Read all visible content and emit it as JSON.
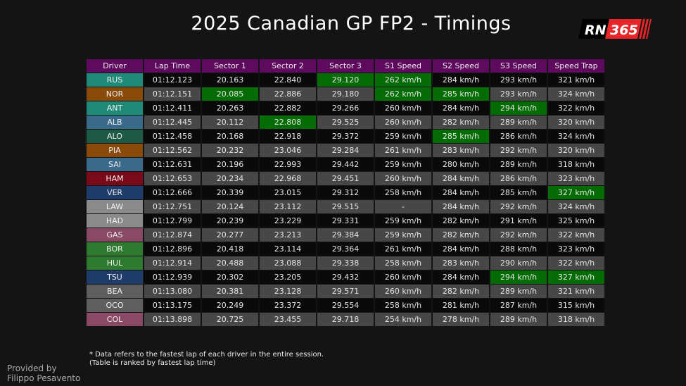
{
  "title": "2025 Canadian GP FP2 - Timings",
  "logo": {
    "text_left": "RN",
    "text_right": "365",
    "colors": {
      "left": "#000000",
      "right": "#e8262a"
    }
  },
  "colors": {
    "header": "#5e0a5e",
    "row_dark": "#0a0a0a",
    "row_gray": "#474747",
    "fastest": "#056b05"
  },
  "table": {
    "headers": [
      "Driver",
      "Lap Time",
      "Sector 1",
      "Sector 2",
      "Sector 3",
      "S1 Speed",
      "S2 Speed",
      "S3 Speed",
      "Speed Trap"
    ],
    "rows": [
      {
        "driver": "RUS",
        "color": "#1f8a78",
        "cells": [
          "01:12.123",
          "20.163",
          "22.840",
          "29.120",
          "262 km/h",
          "284 km/h",
          "293 km/h",
          "321 km/h"
        ],
        "fastest": [
          3,
          4
        ]
      },
      {
        "driver": "NOR",
        "color": "#8a4a0a",
        "cells": [
          "01:12.151",
          "20.085",
          "22.886",
          "29.180",
          "262 km/h",
          "285 km/h",
          "293 km/h",
          "324 km/h"
        ],
        "fastest": [
          1,
          4,
          5
        ]
      },
      {
        "driver": "ANT",
        "color": "#1f8a78",
        "cells": [
          "01:12.411",
          "20.263",
          "22.882",
          "29.266",
          "260 km/h",
          "284 km/h",
          "294 km/h",
          "322 km/h"
        ],
        "fastest": [
          6
        ]
      },
      {
        "driver": "ALB",
        "color": "#3a6a8a",
        "cells": [
          "01:12.445",
          "20.112",
          "22.808",
          "29.525",
          "260 km/h",
          "282 km/h",
          "289 km/h",
          "320 km/h"
        ],
        "fastest": [
          2
        ]
      },
      {
        "driver": "ALO",
        "color": "#1c5a45",
        "cells": [
          "01:12.458",
          "20.168",
          "22.918",
          "29.372",
          "259 km/h",
          "285 km/h",
          "286 km/h",
          "324 km/h"
        ],
        "fastest": [
          5
        ]
      },
      {
        "driver": "PIA",
        "color": "#8a4a0a",
        "cells": [
          "01:12.562",
          "20.232",
          "23.046",
          "29.284",
          "261 km/h",
          "283 km/h",
          "292 km/h",
          "320 km/h"
        ],
        "fastest": []
      },
      {
        "driver": "SAI",
        "color": "#3a6a8a",
        "cells": [
          "01:12.631",
          "20.196",
          "22.993",
          "29.442",
          "259 km/h",
          "280 km/h",
          "289 km/h",
          "318 km/h"
        ],
        "fastest": []
      },
      {
        "driver": "HAM",
        "color": "#7a0a1a",
        "cells": [
          "01:12.653",
          "20.234",
          "22.968",
          "29.451",
          "260 km/h",
          "284 km/h",
          "286 km/h",
          "323 km/h"
        ],
        "fastest": []
      },
      {
        "driver": "VER",
        "color": "#1f3c6a",
        "cells": [
          "01:12.666",
          "20.339",
          "23.015",
          "29.312",
          "258 km/h",
          "284 km/h",
          "285 km/h",
          "327 km/h"
        ],
        "fastest": [
          7
        ]
      },
      {
        "driver": "LAW",
        "color": "#8a8a8a",
        "cells": [
          "01:12.751",
          "20.124",
          "23.112",
          "29.515",
          "-",
          "284 km/h",
          "292 km/h",
          "324 km/h"
        ],
        "fastest": []
      },
      {
        "driver": "HAD",
        "color": "#8a8a8a",
        "cells": [
          "01:12.799",
          "20.239",
          "23.229",
          "29.331",
          "259 km/h",
          "282 km/h",
          "291 km/h",
          "325 km/h"
        ],
        "fastest": []
      },
      {
        "driver": "GAS",
        "color": "#8a4a65",
        "cells": [
          "01:12.874",
          "20.277",
          "23.213",
          "29.384",
          "259 km/h",
          "282 km/h",
          "292 km/h",
          "322 km/h"
        ],
        "fastest": []
      },
      {
        "driver": "BOR",
        "color": "#2e7a2e",
        "cells": [
          "01:12.896",
          "20.418",
          "23.114",
          "29.364",
          "261 km/h",
          "284 km/h",
          "288 km/h",
          "323 km/h"
        ],
        "fastest": []
      },
      {
        "driver": "HUL",
        "color": "#2e7a2e",
        "cells": [
          "01:12.914",
          "20.488",
          "23.088",
          "29.338",
          "258 km/h",
          "283 km/h",
          "290 km/h",
          "322 km/h"
        ],
        "fastest": []
      },
      {
        "driver": "TSU",
        "color": "#1f3c6a",
        "cells": [
          "01:12.939",
          "20.302",
          "23.205",
          "29.432",
          "260 km/h",
          "284 km/h",
          "294 km/h",
          "327 km/h"
        ],
        "fastest": [
          6,
          7
        ]
      },
      {
        "driver": "BEA",
        "color": "#5e5e5e",
        "cells": [
          "01:13.080",
          "20.381",
          "23.128",
          "29.571",
          "260 km/h",
          "282 km/h",
          "289 km/h",
          "321 km/h"
        ],
        "fastest": []
      },
      {
        "driver": "OCO",
        "color": "#5e5e5e",
        "cells": [
          "01:13.175",
          "20.249",
          "23.372",
          "29.554",
          "258 km/h",
          "281 km/h",
          "287 km/h",
          "315 km/h"
        ],
        "fastest": []
      },
      {
        "driver": "COL",
        "color": "#8a4a65",
        "cells": [
          "01:13.898",
          "20.725",
          "23.455",
          "29.718",
          "254 km/h",
          "278 km/h",
          "289 km/h",
          "318 km/h"
        ],
        "fastest": []
      }
    ]
  },
  "notes": [
    "* Data refers to the fastest lap of each driver in the entire session.",
    "(Table is ranked by fastest lap time)"
  ],
  "credit": [
    "Provided by",
    "Filippo Pesavento"
  ]
}
